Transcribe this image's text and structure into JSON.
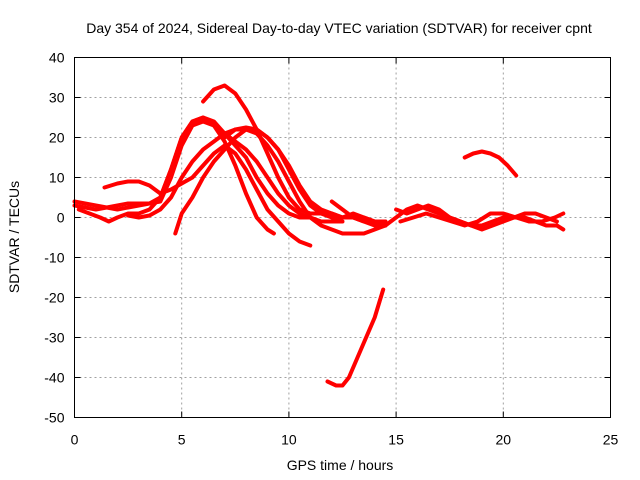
{
  "chart_data": {
    "type": "line",
    "title": "Day 354 of 2024, Sidereal Day-to-day VTEC variation (SDTVAR) for receiver cpnt",
    "xlabel": "GPS time / hours",
    "ylabel": "SDTVAR / TECUs",
    "xlim": [
      0,
      25
    ],
    "ylim": [
      -50,
      40
    ],
    "xticks": [
      0,
      5,
      10,
      15,
      20,
      25
    ],
    "yticks": [
      -50,
      -40,
      -30,
      -20,
      -10,
      0,
      10,
      20,
      30,
      40
    ],
    "xtick_labels": [
      "0",
      "5",
      "10",
      "15",
      "20",
      "25"
    ],
    "ytick_labels": [
      "-50",
      "-40",
      "-30",
      "-20",
      "-10",
      "0",
      "10",
      "20",
      "30",
      "40"
    ],
    "grid": true,
    "color": "#ff0000",
    "series": [
      {
        "name": "s1",
        "x": [
          0.0,
          0.5,
          1.0,
          1.5,
          2.0,
          2.5,
          3.0,
          3.5,
          4.0,
          4.5,
          5.0,
          5.5,
          6.0,
          6.5,
          7.0,
          7.5,
          8.0,
          8.5,
          9.0,
          9.5,
          10.0,
          10.5,
          11.0
        ],
        "y": [
          3,
          2.5,
          2,
          2.5,
          3,
          3.5,
          3.5,
          3.5,
          5,
          12,
          20,
          24,
          25,
          24,
          21,
          18,
          15,
          10,
          6,
          3,
          1,
          0,
          0
        ]
      },
      {
        "name": "s2",
        "x": [
          0.0,
          0.5,
          1.0,
          1.5,
          2.0,
          2.5,
          3.0,
          3.5,
          4.0,
          4.5,
          5.0,
          5.5,
          6.0,
          6.5,
          7.0,
          7.5,
          8.0,
          8.5,
          9.0,
          9.5,
          10.0,
          10.5,
          11.0,
          11.5,
          12.0,
          12.5
        ],
        "y": [
          4,
          3.5,
          3,
          2.5,
          2,
          2.5,
          3,
          3.5,
          4,
          10,
          18,
          23,
          24,
          23,
          21,
          19,
          17,
          14,
          10,
          6,
          3,
          1,
          0,
          -1,
          -1,
          -1
        ]
      },
      {
        "name": "s3",
        "x": [
          0.2,
          0.7,
          1.2,
          1.6,
          2.0,
          2.5,
          3.0,
          3.5,
          4.0,
          4.5,
          5.0,
          5.5,
          6.0,
          6.5,
          7.0,
          7.5,
          8.0,
          8.5,
          9.0,
          9.3
        ],
        "y": [
          2,
          1,
          0,
          -1,
          0,
          1,
          1,
          2,
          5,
          12,
          20,
          24,
          25,
          23,
          19,
          13,
          6,
          0,
          -3,
          -4
        ]
      },
      {
        "name": "s4",
        "x": [
          1.4,
          2.0,
          2.5,
          3.0,
          3.5,
          4.0,
          4.5,
          5.0,
          5.5,
          6.0,
          6.5,
          7.0,
          7.5,
          8.0,
          8.5,
          9.0,
          9.5,
          10.0,
          10.5,
          11.0
        ],
        "y": [
          7.5,
          8.5,
          9,
          9,
          8,
          6,
          7,
          8.5,
          10,
          13,
          16,
          18,
          16,
          12,
          7,
          2,
          -1,
          -4,
          -6,
          -7
        ]
      },
      {
        "name": "s5",
        "x": [
          2.5,
          3.0,
          3.5,
          4.0,
          4.5,
          5.0,
          5.5,
          6.0,
          6.5,
          7.0,
          7.5,
          8.0,
          8.5,
          9.0,
          9.5,
          10.0,
          10.5,
          11.0,
          11.5,
          12.0,
          12.5,
          13.0,
          13.5,
          14.0,
          14.5
        ],
        "y": [
          0.5,
          0,
          0.5,
          2,
          5,
          10,
          14,
          17,
          19,
          21,
          22,
          22,
          21,
          18,
          14,
          9,
          4,
          0,
          -2,
          -3,
          -4,
          -4,
          -4,
          -3,
          -2
        ]
      },
      {
        "name": "s6",
        "x": [
          4.7,
          5.0,
          5.5,
          6.0,
          6.5,
          7.0,
          7.5,
          8.0,
          8.5,
          9.0,
          9.5,
          10.0,
          10.5,
          11.0,
          11.5,
          12.0,
          12.5,
          13.0,
          13.5,
          14.0,
          14.5
        ],
        "y": [
          -4,
          1,
          5,
          10,
          14,
          17,
          20,
          22,
          22,
          20,
          17,
          12,
          7,
          3,
          1,
          0,
          0,
          1,
          0,
          -1,
          -1
        ]
      },
      {
        "name": "s7",
        "x": [
          6.0,
          6.5,
          7.0,
          7.5,
          8.0,
          8.5,
          9.0,
          9.5,
          10.0,
          10.5,
          11.0,
          11.5,
          12.0,
          12.5,
          13.0,
          13.5,
          14.0,
          14.5
        ],
        "y": [
          29,
          32,
          33,
          31,
          27,
          22,
          16,
          10,
          5,
          2,
          1,
          1,
          1,
          0,
          0,
          0,
          -1,
          -1
        ]
      },
      {
        "name": "s8",
        "x": [
          7.0,
          7.5,
          8.0,
          8.5,
          9.0,
          9.5,
          10.0,
          10.5,
          11.0,
          11.5,
          12.0,
          12.5,
          13.0,
          13.5,
          14.0,
          14.5
        ],
        "y": [
          20,
          22,
          22.5,
          22,
          20,
          17,
          13,
          8,
          4,
          2,
          1,
          0,
          0,
          -1,
          -1,
          -2
        ]
      },
      {
        "name": "s9",
        "x": [
          11.8,
          12.2,
          12.5,
          12.8,
          13.2,
          13.6,
          14.0,
          14.4
        ],
        "y": [
          -41,
          -42,
          -42,
          -40,
          -35,
          -30,
          -25,
          -18
        ]
      },
      {
        "name": "s10",
        "x": [
          12.0,
          12.5,
          13.0,
          13.5,
          14.0,
          14.5,
          15.0,
          15.5,
          16.0,
          16.5,
          17.0,
          17.5,
          18.0,
          18.5,
          19.0,
          19.5,
          20.0,
          20.5,
          21.0,
          21.5,
          22.0,
          22.5
        ],
        "y": [
          4,
          2,
          0,
          -1,
          -2,
          -2,
          0,
          2,
          3,
          2,
          1,
          0,
          -1,
          -2,
          -2,
          -1,
          0,
          0,
          1,
          1,
          0,
          -1
        ]
      },
      {
        "name": "s11",
        "x": [
          15.0,
          15.5,
          16.0,
          16.5,
          17.0,
          17.5,
          18.0,
          18.5,
          19.0,
          19.5,
          20.0,
          20.5,
          21.0,
          21.5,
          22.0,
          22.5,
          22.8
        ],
        "y": [
          2,
          1,
          2,
          3,
          2,
          0,
          -1,
          -2,
          -3,
          -2,
          -1,
          0,
          0,
          -1,
          -2,
          -2,
          -3
        ]
      },
      {
        "name": "s12",
        "x": [
          15.2,
          15.8,
          16.4,
          17.0,
          17.6,
          18.2,
          18.8,
          19.4,
          20.0,
          20.6,
          21.2,
          21.8,
          22.4,
          22.8
        ],
        "y": [
          -1,
          0,
          1,
          0,
          -1,
          -2,
          -1,
          1,
          1,
          0,
          -1,
          -1,
          0,
          1
        ]
      },
      {
        "name": "s13",
        "x": [
          18.2,
          18.6,
          19.0,
          19.4,
          19.8,
          20.2,
          20.6
        ],
        "y": [
          15,
          16,
          16.5,
          16,
          15,
          13,
          10.5
        ]
      }
    ]
  }
}
